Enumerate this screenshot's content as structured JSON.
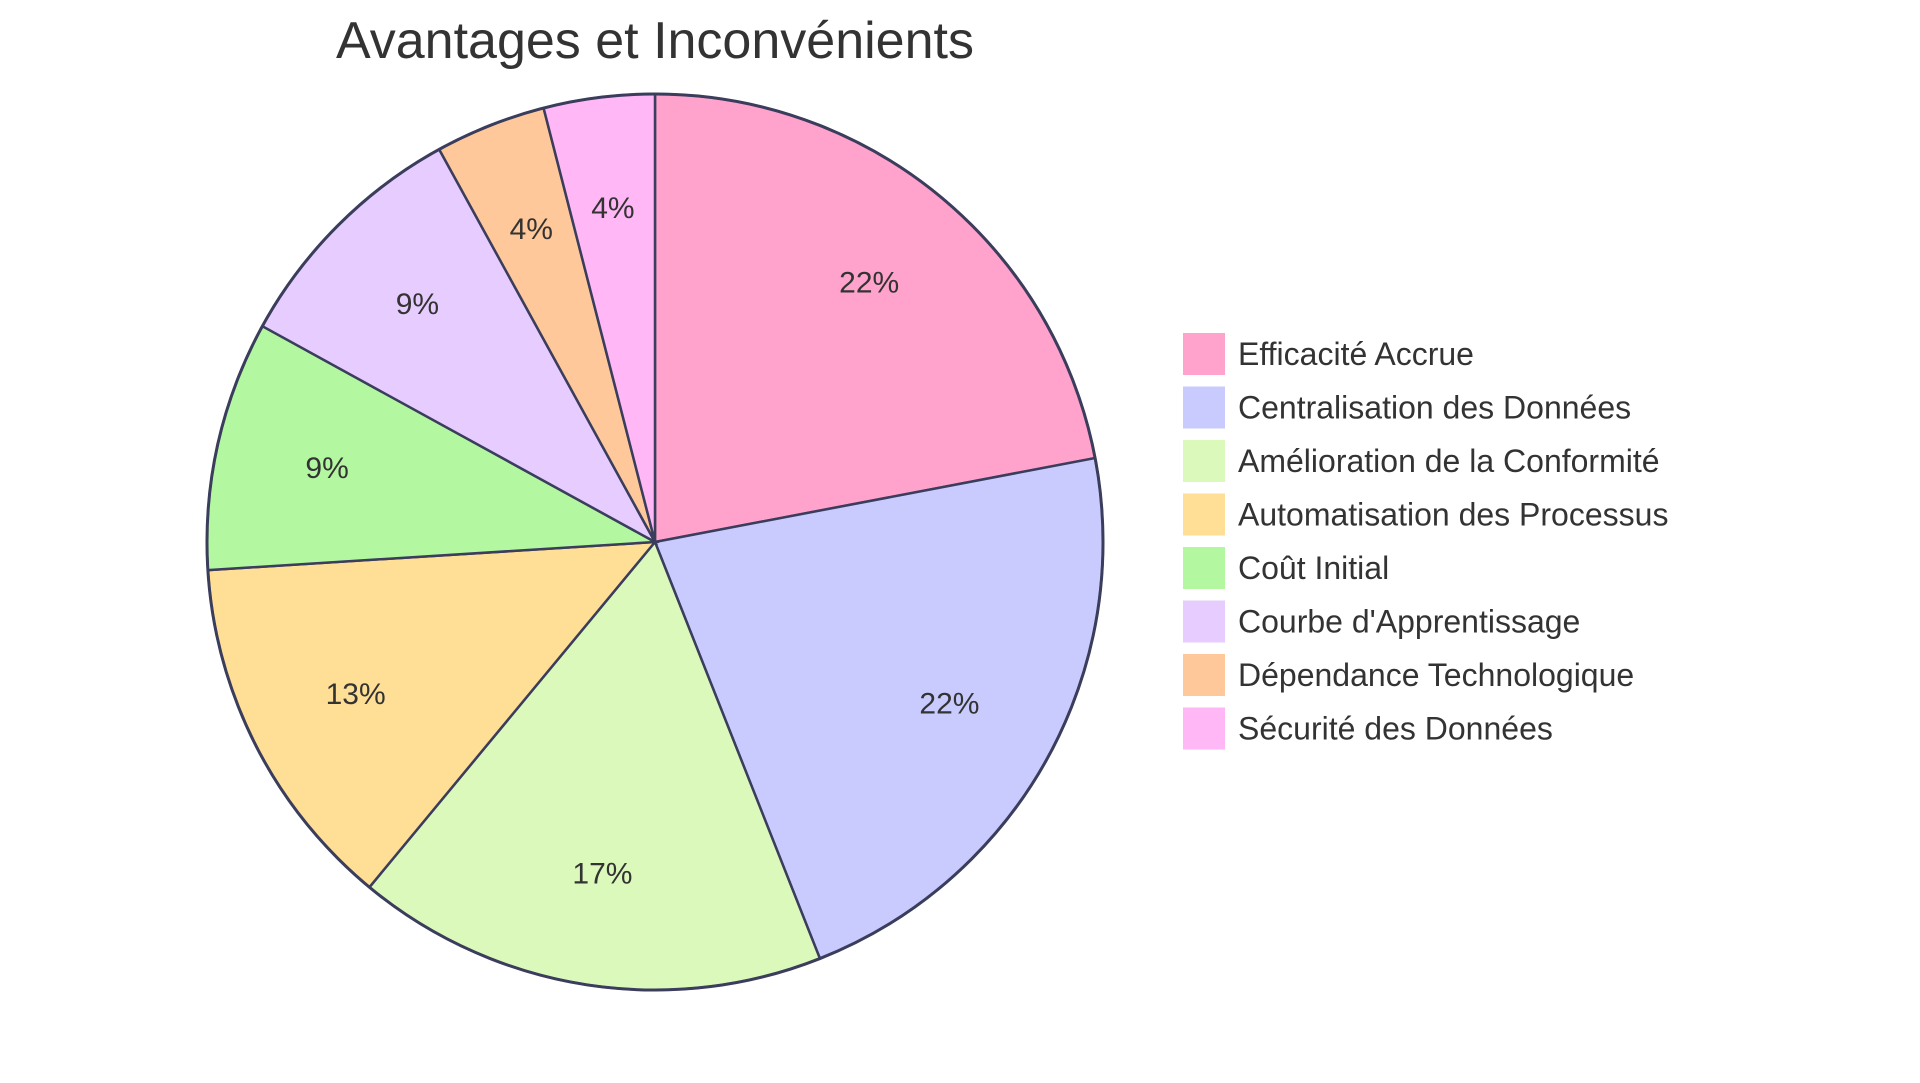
{
  "chart_data": {
    "type": "pie",
    "title": "Avantages et Inconvénients",
    "categories": [
      "Efficacité Accrue",
      "Centralisation des Données",
      "Amélioration de la Conformité",
      "Automatisation des Processus",
      "Coût Initial",
      "Courbe d'Apprentissage",
      "Dépendance Technologique",
      "Sécurité des Données"
    ],
    "values": [
      22,
      22,
      17,
      13,
      9,
      9,
      4,
      4
    ],
    "value_labels": [
      "22%",
      "22%",
      "17%",
      "13%",
      "9%",
      "9%",
      "4%",
      "4%"
    ],
    "colors": [
      "#FFA2CC",
      "#C9CBFF",
      "#DCF9BC",
      "#FFDE96",
      "#B3F8A0",
      "#E6CCFF",
      "#FFC89A",
      "#FFB7F6"
    ],
    "legend_position": "right",
    "start_angle": "top, clockwise"
  }
}
